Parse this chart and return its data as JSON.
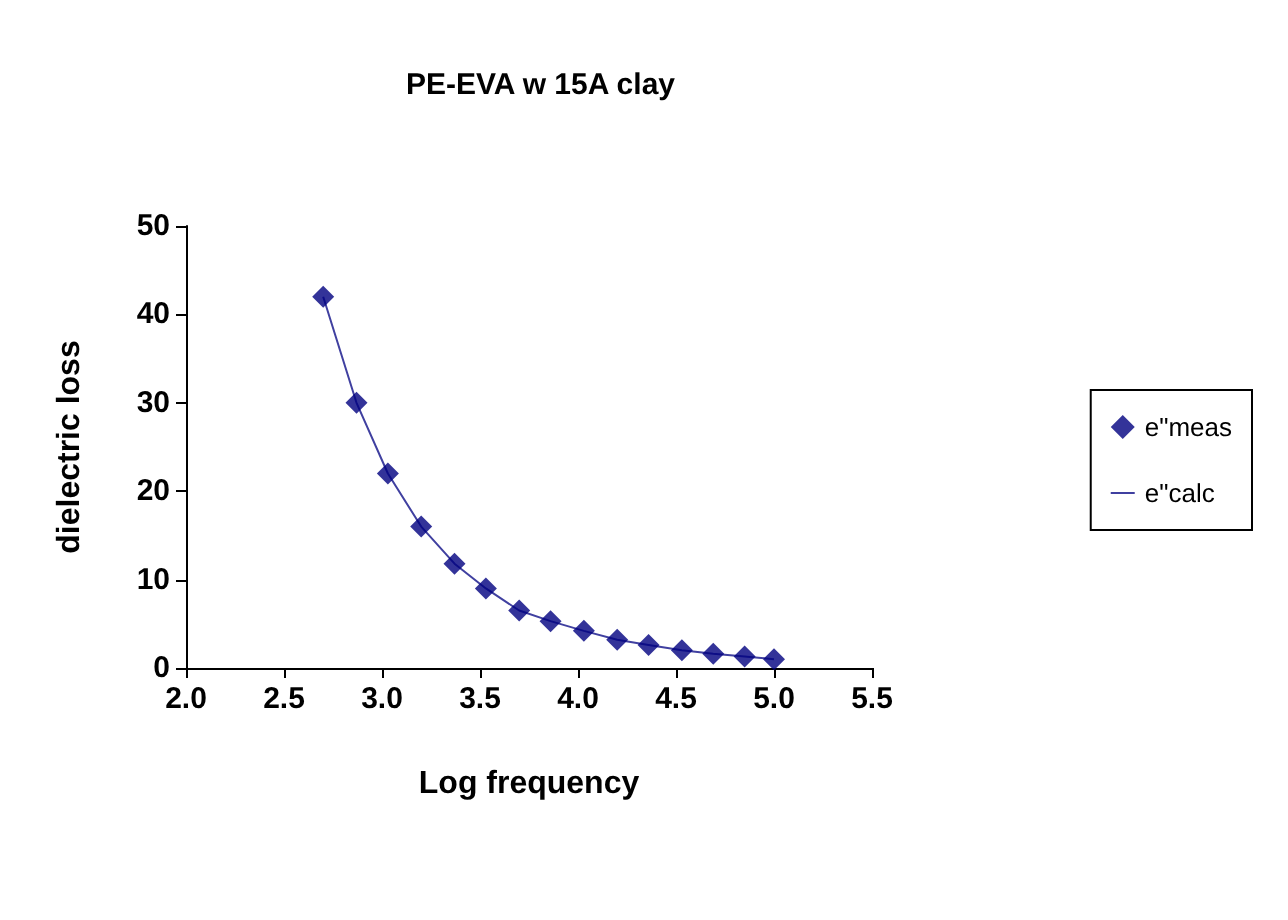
{
  "chart_data": {
    "type": "scatter",
    "title": "PE-EVA w 15A clay",
    "xlabel": "Log frequency",
    "ylabel": "dielectric loss",
    "x": [
      2.7,
      2.87,
      3.03,
      3.2,
      3.37,
      3.53,
      3.7,
      3.86,
      4.03,
      4.2,
      4.36,
      4.53,
      4.69,
      4.85,
      5.0
    ],
    "series": [
      {
        "name": "e\"meas",
        "color": "#000080",
        "marker": "diamond",
        "values": [
          42,
          30,
          22,
          16,
          11.8,
          9,
          6.5,
          5.3,
          4.2,
          3.2,
          2.6,
          2.0,
          1.6,
          1.3,
          1.0
        ]
      },
      {
        "name": "e\"calc",
        "type": "line",
        "color": "#4040a0",
        "marker": "none",
        "values": [
          42,
          30,
          22,
          16,
          11.8,
          9,
          6.5,
          5.3,
          4.2,
          3.2,
          2.6,
          2.0,
          1.6,
          1.3,
          1.0
        ]
      }
    ],
    "xlim": [
      2.0,
      5.5
    ],
    "xticks": [
      {
        "value": 2.0,
        "label": "2.0"
      },
      {
        "value": 2.5,
        "label": "2.5"
      },
      {
        "value": 3.0,
        "label": "3.0"
      },
      {
        "value": 3.5,
        "label": "3.5"
      },
      {
        "value": 4.0,
        "label": "4.0"
      },
      {
        "value": 4.5,
        "label": "4.5"
      },
      {
        "value": 5.0,
        "label": "5.0"
      },
      {
        "value": 5.5,
        "label": "5.5"
      }
    ],
    "ylim": [
      0,
      50
    ],
    "yticks": [
      0,
      10,
      20,
      30,
      40,
      50
    ],
    "grid": false,
    "legend": "right"
  }
}
